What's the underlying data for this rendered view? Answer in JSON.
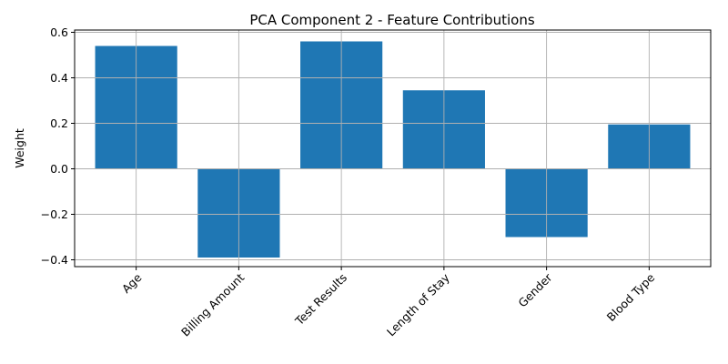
{
  "chart_data": {
    "type": "bar",
    "title": "PCA Component 2 - Feature Contributions",
    "xlabel": "",
    "ylabel": "Weight",
    "categories": [
      "Age",
      "Billing Amount",
      "Test Results",
      "Length of Stay",
      "Gender",
      "Blood Type"
    ],
    "values": [
      0.54,
      -0.39,
      0.56,
      0.345,
      -0.3,
      0.195
    ],
    "ylim": [
      -0.43,
      0.61
    ],
    "yticks": [
      -0.4,
      -0.2,
      0.0,
      0.2,
      0.4,
      0.6
    ],
    "ytick_labels": [
      "−0.4",
      "−0.2",
      "0.0",
      "0.2",
      "0.4",
      "0.6"
    ],
    "grid": true,
    "bar_color": "#1f77b4",
    "xtick_rotation_deg": 45
  }
}
